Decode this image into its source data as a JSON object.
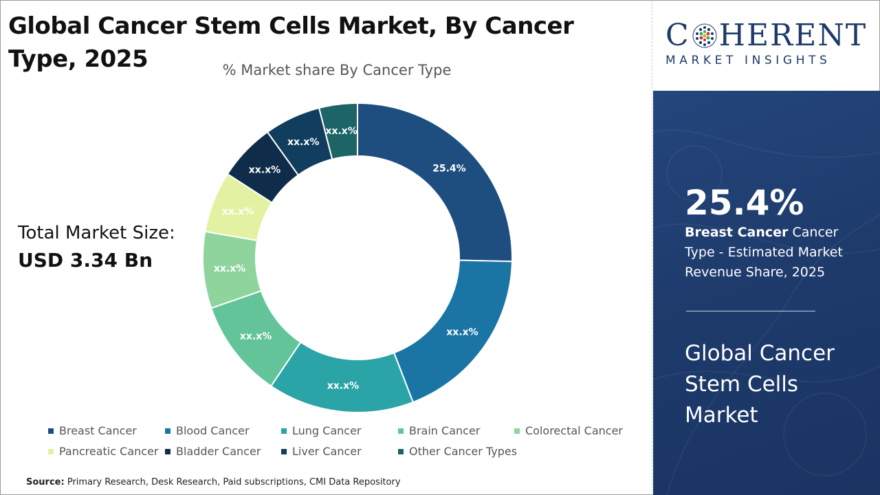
{
  "title": "Global Cancer Stem Cells Market, By Cancer Type, 2025",
  "total_market": {
    "label": "Total Market Size:",
    "value": "USD 3.34 Bn"
  },
  "source": {
    "label": "Source:",
    "text": "Primary Research, Desk Research, Paid subscriptions, CMI Data Repository"
  },
  "logo": {
    "main_left": "C",
    "main_right": "HERENT",
    "sub": "MARKET INSIGHTS"
  },
  "highlight": {
    "value": "25.4%",
    "segment": "Breast Cancer",
    "description_rest": "Cancer Type - Estimated Market Revenue Share, 2025",
    "market_name": "Global Cancer Stem Cells Market"
  },
  "chart_data": {
    "type": "donut",
    "title": "% Market share By Cancer Type",
    "legend_position": "bottom",
    "categories": [
      "Breast Cancer",
      "Blood Cancer",
      "Lung Cancer",
      "Brain Cancer",
      "Colorectal Cancer",
      "Pancreatic Cancer",
      "Bladder Cancer",
      "Liver Cancer",
      "Other Cancer Types"
    ],
    "values": [
      25.4,
      18.8,
      15.3,
      10.3,
      8.0,
      6.4,
      6.0,
      5.9,
      4.0
    ],
    "labels": [
      "25.4%",
      "xx.x%",
      "xx.x%",
      "xx.x%",
      "xx.x%",
      "xx.x%",
      "xx.x%",
      "xx.x%",
      "xx.x%"
    ],
    "colors": [
      "#1d4e7f",
      "#1b75a4",
      "#2aa4a6",
      "#63c49a",
      "#8fd49d",
      "#e2f2a2",
      "#0f2d4a",
      "#113d5e",
      "#1d6466"
    ]
  }
}
